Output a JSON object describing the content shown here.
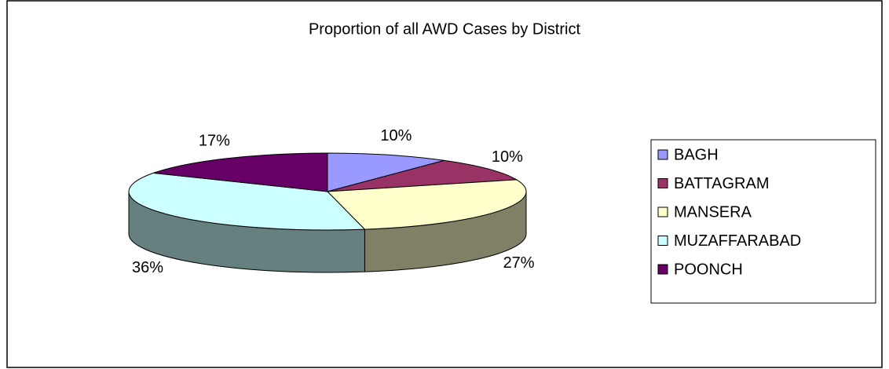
{
  "chart_data": {
    "type": "pie3d",
    "title": "Proportion of all AWD Cases by District",
    "categories": [
      "BAGH",
      "BATTAGRAM",
      "MANSERA",
      "MUZAFFARABAD",
      "POONCH"
    ],
    "values": [
      10,
      10,
      27,
      36,
      17
    ],
    "value_labels": [
      "10%",
      "10%",
      "27%",
      "36%",
      "17%"
    ],
    "colors": [
      "#9999ff",
      "#993366",
      "#ffffcc",
      "#ccffff",
      "#660066"
    ],
    "legend": "right"
  }
}
